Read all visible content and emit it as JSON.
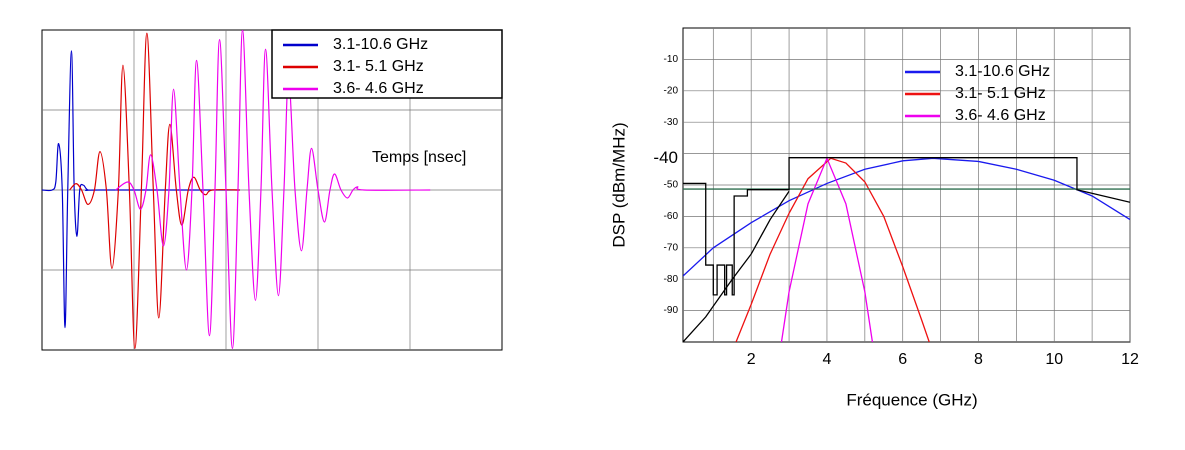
{
  "chart_data": [
    {
      "type": "line",
      "annotation": "Temps [nsec]",
      "xlim": [
        0,
        5
      ],
      "ylim": [
        -1,
        1
      ],
      "xticks": [
        1,
        2,
        3,
        4
      ],
      "yticks": [
        -0.5,
        0,
        0.5
      ],
      "grid": true,
      "smooth": true,
      "legend": "upper right",
      "legend_frame": true,
      "series": [
        {
          "name": "3.1-10.6 GHz",
          "color": "#0000cc",
          "x": [
            0,
            0.11,
            0.15,
            0.18,
            0.22,
            0.25,
            0.28,
            0.32,
            0.35,
            0.38,
            0.41,
            0.45,
            0.5,
            0.63,
            2.15
          ],
          "values": [
            0,
            0,
            0.05,
            0.29,
            0,
            -0.86,
            0,
            0.87,
            0,
            -0.29,
            0,
            0.03,
            0,
            0,
            0
          ]
        },
        {
          "name": "3.1- 5.1 GHz",
          "color": "#dd0000",
          "x": [
            0.3,
            0.37,
            0.43,
            0.5,
            0.57,
            0.63,
            0.7,
            0.76,
            0.83,
            0.88,
            0.95,
            1.01,
            1.08,
            1.14,
            1.21,
            1.27,
            1.34,
            1.39,
            1.46,
            1.52,
            1.59,
            1.65,
            1.72,
            1.78,
            1.85,
            2.15
          ],
          "values": [
            0,
            0.04,
            0,
            -0.09,
            0,
            0.24,
            0,
            -0.49,
            0,
            0.78,
            0,
            -0.99,
            0,
            0.98,
            0,
            -0.8,
            0,
            0.41,
            0,
            -0.22,
            0,
            0.08,
            0,
            -0.03,
            0,
            0
          ]
        },
        {
          "name": "3.6- 4.6 GHz",
          "color": "#ee00ee",
          "x": [
            0.8,
            0.93,
            1.0,
            1.07,
            1.13,
            1.18,
            1.25,
            1.32,
            1.38,
            1.43,
            1.5,
            1.57,
            1.63,
            1.68,
            1.75,
            1.82,
            1.88,
            1.93,
            2.0,
            2.07,
            2.13,
            2.18,
            2.25,
            2.32,
            2.38,
            2.43,
            2.5,
            2.57,
            2.63,
            2.68,
            2.75,
            2.82,
            2.88,
            2.93,
            3.0,
            3.07,
            3.13,
            3.18,
            3.25,
            3.32,
            3.38,
            3.43,
            3.5,
            4.22
          ],
          "values": [
            0,
            0.05,
            0,
            -0.12,
            0,
            0.22,
            0,
            -0.35,
            0,
            0.63,
            0,
            -0.5,
            0,
            0.81,
            0,
            -0.91,
            0,
            0.94,
            0,
            -0.99,
            0,
            1.0,
            0,
            -0.69,
            0,
            0.88,
            0,
            -0.66,
            0,
            0.7,
            0,
            -0.38,
            0,
            0.26,
            0,
            -0.2,
            0,
            0.1,
            0,
            -0.05,
            0,
            0.02,
            0,
            0
          ]
        }
      ]
    },
    {
      "type": "line",
      "xlabel": "Fréquence  (GHz)",
      "ylabel": "DSP (dBm/MHz)",
      "xlim": [
        0.2,
        12
      ],
      "ylim": [
        -100,
        0
      ],
      "xticks": [
        2,
        4,
        6,
        8,
        10,
        12
      ],
      "xminor": [
        1,
        3,
        5,
        7,
        9,
        11
      ],
      "yticks": [
        -90,
        -80,
        -70,
        -60,
        -50,
        -40,
        -30,
        -20,
        -10
      ],
      "emphasized_ytick": -40,
      "grid": true,
      "smooth": false,
      "legend": "upper right",
      "legend_frame": false,
      "series": [
        {
          "name": "3.1-10.6 GHz",
          "color": "#1a1aee",
          "x": [
            0.2,
            1,
            2,
            3,
            4,
            5,
            6,
            6.8,
            8,
            9,
            10,
            11,
            12
          ],
          "values": [
            -79,
            -70,
            -62,
            -55,
            -49.5,
            -45,
            -42.3,
            -41.5,
            -42.5,
            -45,
            -48.5,
            -53.5,
            -61
          ]
        },
        {
          "name": "3.1- 5.1 GHz",
          "color": "#ee1111",
          "x": [
            1.6,
            2,
            2.5,
            3,
            3.5,
            4.1,
            4.5,
            5,
            5.5,
            6,
            6.5,
            6.7
          ],
          "values": [
            -100,
            -88,
            -72,
            -59,
            -48,
            -41.5,
            -43,
            -49,
            -60,
            -76,
            -93,
            -100
          ]
        },
        {
          "name": "3.6- 4.6 GHz",
          "color": "#ee00ee",
          "x": [
            2.8,
            3,
            3.5,
            4,
            4.5,
            5,
            5.2
          ],
          "values": [
            -100,
            -84,
            -56,
            -41.5,
            -56,
            -84,
            -100
          ]
        },
        {
          "color": "#2f6f4f",
          "x": [
            0.2,
            12
          ],
          "values": [
            -51.3,
            -51.3
          ]
        },
        {
          "color": "#000000",
          "x": [
            0.2,
            0.8,
            0.8,
            1.0,
            1.0,
            1.1,
            1.1,
            1.3,
            1.3,
            1.35,
            1.35,
            1.5,
            1.5,
            1.55,
            1.55,
            1.9,
            1.9,
            3.0,
            3.0,
            10.6,
            10.6,
            12
          ],
          "values": [
            -49.5,
            -49.5,
            -75.5,
            -75.5,
            -85,
            -85,
            -75.5,
            -75.5,
            -85,
            -85,
            -75.5,
            -75.5,
            -85,
            -85,
            -53.5,
            -53.5,
            -51.5,
            -51.5,
            -41.3,
            -41.3,
            -51.5,
            -55.5
          ]
        },
        {
          "color": "#000000",
          "x": [
            0.2,
            0.8,
            1.5,
            2,
            2.5,
            3
          ],
          "values": [
            -100,
            -92,
            -80,
            -72,
            -61,
            -52
          ]
        }
      ]
    }
  ]
}
